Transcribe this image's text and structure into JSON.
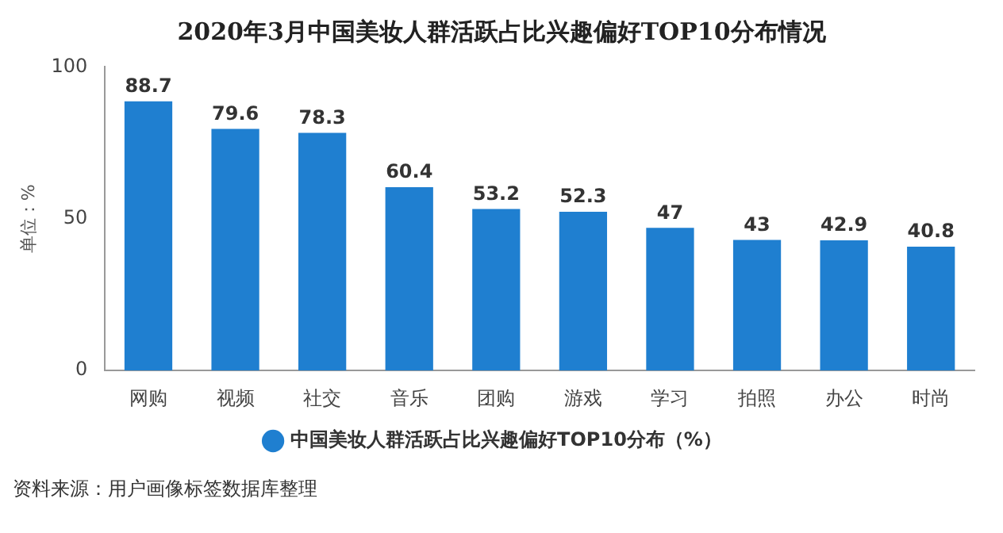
{
  "chart_data": {
    "type": "bar",
    "title": "2020年3月中国美妆人群活跃占比兴趣偏好TOP10分布情况",
    "ylabel": "单位：%",
    "categories": [
      "网购",
      "视频",
      "社交",
      "音乐",
      "团购",
      "游戏",
      "学习",
      "拍照",
      "办公",
      "时尚"
    ],
    "series": [
      {
        "name": "中国美妆人群活跃占比兴趣偏好TOP10分布（%）",
        "color": "#1f7fd0",
        "values": [
          88.7,
          79.6,
          78.3,
          60.4,
          53.2,
          52.3,
          47,
          43,
          42.9,
          40.8
        ]
      }
    ],
    "ylim": [
      0,
      100
    ],
    "yticks": [
      0,
      50,
      100
    ],
    "grid": false,
    "legend": "bottom",
    "data_labels": true,
    "annotations": [
      "资料来源：用户画像标签数据库整理"
    ]
  }
}
